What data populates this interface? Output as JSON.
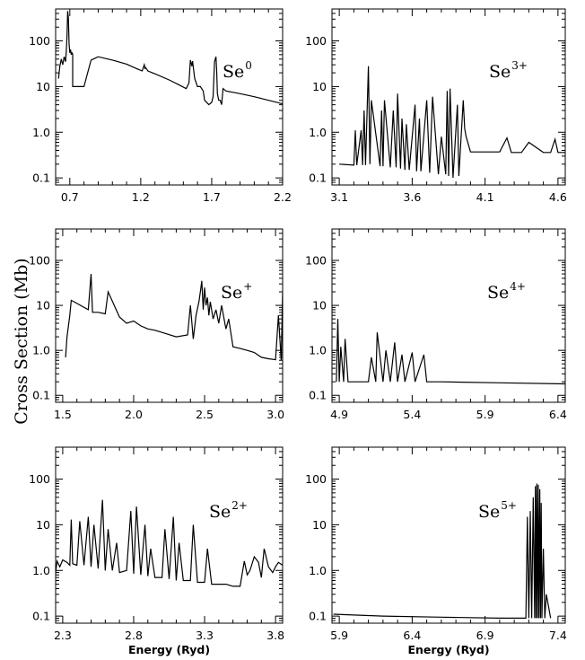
{
  "figure": {
    "ylabel": "Cross Section (Mb)",
    "xlabel": "Energy (Ryd)"
  },
  "chart_data": [
    {
      "type": "line",
      "panel": "top-left",
      "ion": "Se",
      "charge": "0",
      "xlim": [
        0.6,
        2.2
      ],
      "ylim": [
        0.07,
        500
      ],
      "yscale": "log",
      "xticks": [
        0.7,
        1.2,
        1.7,
        2.2
      ],
      "xtick_labels": [
        "0.7",
        "1.2",
        "1.7",
        "2.2"
      ],
      "yticks": [
        0.1,
        1.0,
        10,
        100
      ],
      "ytick_labels": [
        "0.1",
        "1.0",
        "10",
        "100"
      ],
      "xlabel": "",
      "series": [
        {
          "name": "Se0",
          "x": [
            0.62,
            0.63,
            0.64,
            0.65,
            0.66,
            0.67,
            0.675,
            0.68,
            0.685,
            0.69,
            0.695,
            0.7,
            0.705,
            0.71,
            0.715,
            0.72,
            0.72,
            0.8,
            0.85,
            0.88,
            0.9,
            1.0,
            1.1,
            1.18,
            1.21,
            1.225,
            1.23,
            1.235,
            1.25,
            1.3,
            1.4,
            1.48,
            1.52,
            1.54,
            1.55,
            1.56,
            1.565,
            1.58,
            1.6,
            1.62,
            1.64,
            1.65,
            1.68,
            1.7,
            1.71,
            1.72,
            1.73,
            1.735,
            1.74,
            1.75,
            1.76,
            1.77,
            1.78,
            1.8,
            1.85,
            1.9,
            2.0,
            2.1,
            2.2
          ],
          "y": [
            15,
            28,
            40,
            30,
            45,
            35,
            60,
            130,
            450,
            320,
            85,
            55,
            65,
            50,
            55,
            52,
            10,
            10,
            38,
            42,
            45,
            38,
            31,
            24,
            22,
            30,
            25,
            26,
            22,
            19,
            14,
            10.5,
            9,
            12,
            38,
            28,
            36,
            15,
            10,
            10,
            8,
            5,
            4,
            4.5,
            6,
            35,
            45,
            22,
            7,
            5,
            5,
            4,
            9,
            8,
            7.5,
            7,
            6,
            5,
            4.2
          ]
        }
      ]
    },
    {
      "type": "line",
      "panel": "top-right",
      "ion": "Se",
      "charge": "3+",
      "xlim": [
        3.05,
        4.65
      ],
      "ylim": [
        0.07,
        500
      ],
      "yscale": "log",
      "xticks": [
        3.1,
        3.6,
        4.1,
        4.6
      ],
      "xtick_labels": [
        "3.1",
        "3.6",
        "4.1",
        "4.6"
      ],
      "yticks": [
        0.1,
        1.0,
        10,
        100
      ],
      "ytick_labels": [
        "0.1",
        "1.0",
        "10",
        "100"
      ],
      "xlabel": "",
      "series": [
        {
          "name": "Se3+",
          "x": [
            3.1,
            3.2,
            3.21,
            3.22,
            3.25,
            3.26,
            3.27,
            3.28,
            3.3,
            3.31,
            3.32,
            3.38,
            3.39,
            3.4,
            3.41,
            3.45,
            3.47,
            3.49,
            3.5,
            3.52,
            3.53,
            3.55,
            3.56,
            3.58,
            3.62,
            3.63,
            3.65,
            3.66,
            3.7,
            3.72,
            3.74,
            3.78,
            3.8,
            3.83,
            3.84,
            3.85,
            3.86,
            3.88,
            3.91,
            3.92,
            3.93,
            3.95,
            3.96,
            3.97,
            4.0,
            4.05,
            4.1,
            4.2,
            4.25,
            4.28,
            4.35,
            4.4,
            4.5,
            4.55,
            4.58,
            4.6,
            4.65
          ],
          "y": [
            0.2,
            0.19,
            1.1,
            0.19,
            1.1,
            0.19,
            3,
            0.19,
            28,
            0.2,
            5,
            0.18,
            3,
            0.18,
            5,
            0.17,
            3,
            0.17,
            7,
            0.16,
            2,
            0.15,
            1.5,
            0.15,
            4,
            0.14,
            2,
            0.14,
            5,
            0.13,
            6,
            0.12,
            0.8,
            0.12,
            8,
            0.11,
            9,
            0.1,
            4,
            0.11,
            0.38,
            5,
            1.2,
            0.8,
            0.37,
            0.37,
            0.37,
            0.37,
            0.75,
            0.36,
            0.36,
            0.6,
            0.36,
            0.36,
            0.7,
            0.36,
            0.36
          ]
        }
      ]
    },
    {
      "type": "line",
      "panel": "middle-left",
      "ion": "Se",
      "charge": "+",
      "xlim": [
        1.45,
        3.05
      ],
      "ylim": [
        0.07,
        500
      ],
      "yscale": "log",
      "xticks": [
        1.5,
        2.0,
        2.5,
        3.0
      ],
      "xtick_labels": [
        "1.5",
        "2.0",
        "2.5",
        "3.0"
      ],
      "yticks": [
        0.1,
        1.0,
        10,
        100
      ],
      "ytick_labels": [
        "0.1",
        "1.0",
        "10",
        "100"
      ],
      "xlabel": "",
      "series": [
        {
          "name": "Se+",
          "x": [
            1.52,
            1.53,
            1.55,
            1.56,
            1.58,
            1.68,
            1.7,
            1.71,
            1.75,
            1.8,
            1.82,
            1.9,
            1.95,
            2.0,
            2.05,
            2.1,
            2.15,
            2.2,
            2.3,
            2.38,
            2.4,
            2.42,
            2.44,
            2.46,
            2.47,
            2.48,
            2.49,
            2.5,
            2.51,
            2.52,
            2.53,
            2.54,
            2.56,
            2.58,
            2.6,
            2.62,
            2.65,
            2.67,
            2.7,
            2.75,
            2.8,
            2.85,
            2.9,
            2.95,
            3.0,
            3.02,
            3.04,
            3.05
          ],
          "y": [
            0.7,
            2,
            6,
            13,
            12,
            8,
            50,
            7,
            7,
            6.5,
            20,
            5.5,
            4,
            4.5,
            3.5,
            3,
            2.8,
            2.5,
            2,
            2.2,
            10,
            1.8,
            6,
            12,
            20,
            35,
            8,
            25,
            10,
            15,
            6,
            12,
            5,
            8,
            4,
            10,
            3,
            5,
            1.2,
            1.1,
            1.0,
            0.9,
            0.7,
            0.65,
            0.62,
            6,
            0.6,
            20
          ]
        }
      ]
    },
    {
      "type": "line",
      "panel": "middle-right",
      "ion": "Se",
      "charge": "4+",
      "xlim": [
        4.85,
        6.45
      ],
      "ylim": [
        0.07,
        500
      ],
      "yscale": "log",
      "xticks": [
        4.9,
        5.4,
        5.9,
        6.4
      ],
      "xtick_labels": [
        "4.9",
        "5.4",
        "5.9",
        "6.4"
      ],
      "yticks": [
        0.1,
        1.0,
        10,
        100
      ],
      "ytick_labels": [
        "0.1",
        "1.0",
        "10",
        "100"
      ],
      "xlabel": "",
      "series": [
        {
          "name": "Se4+",
          "x": [
            4.88,
            4.89,
            4.9,
            4.91,
            4.93,
            4.94,
            4.96,
            5.1,
            5.12,
            5.15,
            5.16,
            5.2,
            5.22,
            5.25,
            5.28,
            5.3,
            5.33,
            5.35,
            5.4,
            5.42,
            5.48,
            5.5,
            5.6,
            6.0,
            6.45
          ],
          "y": [
            0.2,
            5,
            0.2,
            1.2,
            0.2,
            1.8,
            0.2,
            0.2,
            0.7,
            0.2,
            2.5,
            0.2,
            1,
            0.2,
            1.5,
            0.2,
            0.8,
            0.2,
            0.9,
            0.2,
            0.8,
            0.2,
            0.2,
            0.19,
            0.18
          ]
        }
      ]
    },
    {
      "type": "line",
      "panel": "bottom-left",
      "ion": "Se",
      "charge": "2+",
      "xlim": [
        2.25,
        3.85
      ],
      "ylim": [
        0.07,
        500
      ],
      "yscale": "log",
      "xticks": [
        2.3,
        2.8,
        3.3,
        3.8
      ],
      "xtick_labels": [
        "2.3",
        "2.8",
        "3.3",
        "3.8"
      ],
      "yticks": [
        0.1,
        1.0,
        10,
        100
      ],
      "ytick_labels": [
        "0.1",
        "1.0",
        "10",
        "100"
      ],
      "xlabel": "Energy (Ryd)",
      "series": [
        {
          "name": "Se2+",
          "x": [
            2.25,
            2.26,
            2.28,
            2.3,
            2.33,
            2.35,
            2.36,
            2.37,
            2.4,
            2.42,
            2.45,
            2.48,
            2.5,
            2.52,
            2.55,
            2.58,
            2.6,
            2.62,
            2.65,
            2.68,
            2.7,
            2.75,
            2.78,
            2.8,
            2.82,
            2.85,
            2.88,
            2.9,
            2.92,
            2.95,
            3.0,
            3.02,
            3.05,
            3.08,
            3.1,
            3.12,
            3.15,
            3.2,
            3.22,
            3.25,
            3.3,
            3.32,
            3.35,
            3.4,
            3.45,
            3.5,
            3.55,
            3.58,
            3.6,
            3.62,
            3.65,
            3.68,
            3.7,
            3.72,
            3.75,
            3.78,
            3.8,
            3.82,
            3.85
          ],
          "y": [
            0.9,
            1.6,
            1.2,
            1.7,
            1.5,
            1.3,
            13,
            1.4,
            1.3,
            12,
            1.3,
            15,
            1.2,
            10,
            1.1,
            35,
            1.0,
            8,
            1.0,
            4,
            0.9,
            1.0,
            20,
            0.85,
            25,
            0.8,
            10,
            0.75,
            3,
            0.7,
            0.7,
            8,
            0.65,
            15,
            0.6,
            4,
            0.6,
            0.6,
            10,
            0.55,
            0.55,
            3,
            0.5,
            0.5,
            0.5,
            0.45,
            0.45,
            1.6,
            0.8,
            1.0,
            2,
            1.5,
            0.7,
            3,
            1.2,
            0.9,
            1.2,
            1.5,
            1.3
          ]
        }
      ]
    },
    {
      "type": "line",
      "panel": "bottom-right",
      "ion": "Se",
      "charge": "5+",
      "xlim": [
        5.85,
        7.45
      ],
      "ylim": [
        0.07,
        500
      ],
      "yscale": "log",
      "xticks": [
        5.9,
        6.4,
        6.9,
        7.4
      ],
      "xtick_labels": [
        "5.9",
        "6.4",
        "6.9",
        "7.4"
      ],
      "yticks": [
        0.1,
        1.0,
        10,
        100
      ],
      "ytick_labels": [
        "0.1",
        "1.0",
        "10",
        "100"
      ],
      "xlabel": "Energy (Ryd)",
      "series": [
        {
          "name": "Se5+",
          "x": [
            5.86,
            6.2,
            6.6,
            7.0,
            7.18,
            7.19,
            7.2,
            7.21,
            7.22,
            7.23,
            7.24,
            7.245,
            7.25,
            7.255,
            7.26,
            7.265,
            7.27,
            7.275,
            7.28,
            7.285,
            7.29,
            7.3,
            7.31,
            7.32,
            7.35
          ],
          "y": [
            0.11,
            0.1,
            0.095,
            0.09,
            0.09,
            15,
            0.09,
            20,
            0.09,
            40,
            0.09,
            70,
            0.09,
            80,
            0.09,
            75,
            0.09,
            60,
            0.09,
            30,
            0.09,
            3,
            0.09,
            0.3,
            0.09
          ]
        }
      ]
    }
  ]
}
